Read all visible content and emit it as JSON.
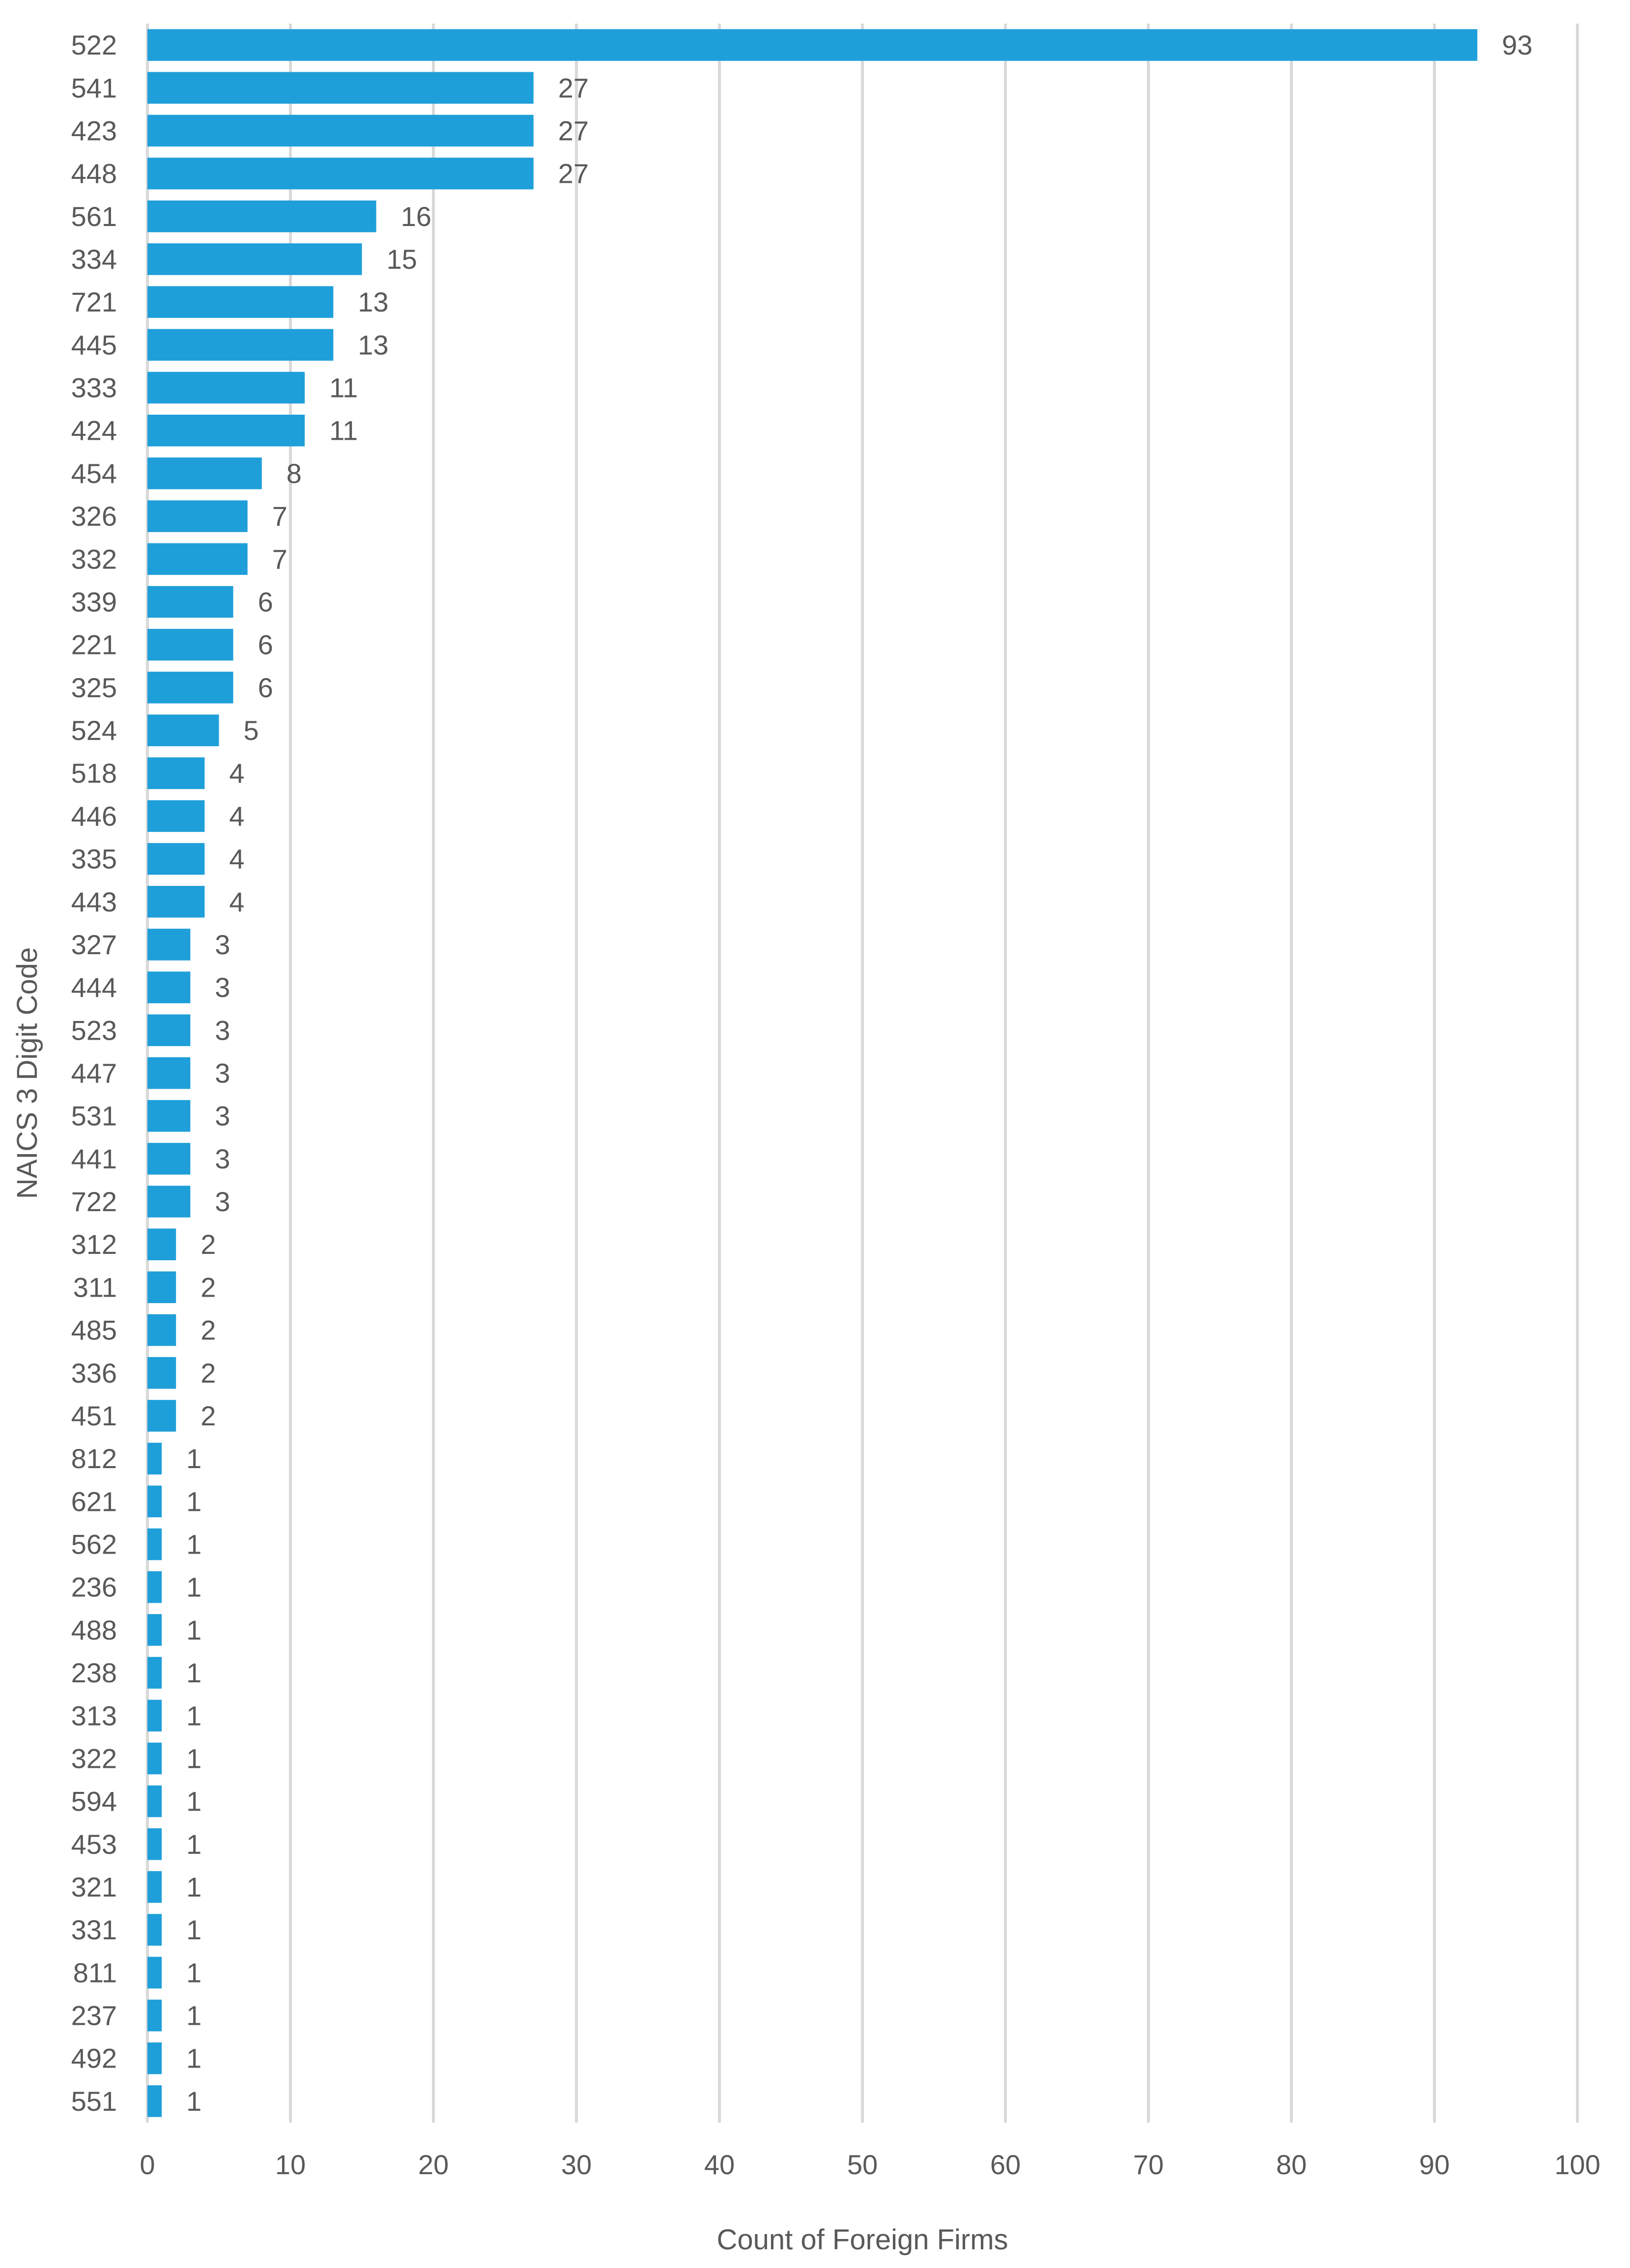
{
  "chart_data": {
    "type": "bar",
    "orientation": "horizontal",
    "title": "",
    "xlabel": "Count of Foreign Firms",
    "ylabel": "NAICS 3 Digit Code",
    "xlim": [
      0,
      100
    ],
    "xticks": [
      0,
      10,
      20,
      30,
      40,
      50,
      60,
      70,
      80,
      90,
      100
    ],
    "grid": true,
    "legend": "none",
    "bar_color": "#1f9fd9",
    "categories": [
      "522",
      "541",
      "423",
      "448",
      "561",
      "334",
      "721",
      "445",
      "333",
      "424",
      "454",
      "326",
      "332",
      "339",
      "221",
      "325",
      "524",
      "518",
      "446",
      "335",
      "443",
      "327",
      "444",
      "523",
      "447",
      "531",
      "441",
      "722",
      "312",
      "311",
      "485",
      "336",
      "451",
      "812",
      "621",
      "562",
      "236",
      "488",
      "238",
      "313",
      "322",
      "594",
      "453",
      "321",
      "331",
      "811",
      "237",
      "492",
      "551"
    ],
    "values": [
      93,
      27,
      27,
      27,
      16,
      15,
      13,
      13,
      11,
      11,
      8,
      7,
      7,
      6,
      6,
      6,
      5,
      4,
      4,
      4,
      4,
      3,
      3,
      3,
      3,
      3,
      3,
      3,
      2,
      2,
      2,
      2,
      2,
      1,
      1,
      1,
      1,
      1,
      1,
      1,
      1,
      1,
      1,
      1,
      1,
      1,
      1,
      1,
      1
    ]
  }
}
